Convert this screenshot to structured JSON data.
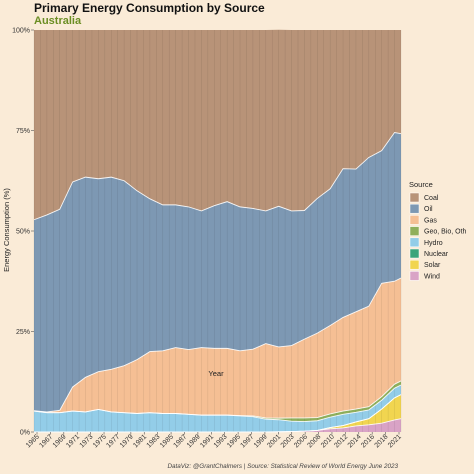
{
  "chart_data": {
    "type": "area",
    "title": "Primary Energy Consumption by Source",
    "subtitle": "Australia",
    "xlabel": "Year",
    "ylabel": "Energy Consumption (%)",
    "caption": "DataViz: @GrantChalmers | Source: Statistical Review of World Energy June 2023",
    "legend_title": "Source",
    "legend_position": "right",
    "xlim": [
      1965,
      2022
    ],
    "ylim": [
      0,
      100
    ],
    "y_ticks": [
      0,
      25,
      50,
      75,
      100
    ],
    "y_tick_labels": [
      "0%",
      "25%",
      "50%",
      "75%",
      "100%"
    ],
    "x_tick_labels": [
      "1965",
      "1967",
      "1969",
      "1971",
      "1973",
      "1975",
      "1977",
      "1979",
      "1981",
      "1983",
      "1985",
      "1987",
      "1989",
      "1991",
      "1993",
      "1995",
      "1997",
      "1999",
      "2001",
      "2003",
      "2006",
      "2008",
      "2010",
      "2012",
      "2014",
      "2016",
      "2018",
      "2021"
    ],
    "stack_order": [
      "Wind",
      "Solar",
      "Nuclear",
      "Hydro",
      "Geo, Bio, Oth",
      "Gas",
      "Oil",
      "Coal"
    ],
    "legend_order": [
      "Coal",
      "Oil",
      "Gas",
      "Geo, Bio, Oth",
      "Hydro",
      "Nuclear",
      "Solar",
      "Wind"
    ],
    "colors": {
      "Coal": "#b89378",
      "Oil": "#7d98b3",
      "Gas": "#f5bf94",
      "Geo, Bio, Oth": "#8faf5c",
      "Hydro": "#93cde8",
      "Nuclear": "#3aa57a",
      "Solar": "#f1d550",
      "Wind": "#d9a3c6"
    },
    "x": [
      1965,
      1967,
      1969,
      1971,
      1973,
      1975,
      1977,
      1979,
      1981,
      1983,
      1985,
      1987,
      1989,
      1991,
      1993,
      1995,
      1997,
      1999,
      2001,
      2003,
      2005,
      2007,
      2009,
      2011,
      2013,
      2015,
      2017,
      2019,
      2021,
      2022
    ],
    "series": [
      {
        "name": "Wind",
        "values": [
          0,
          0,
          0,
          0,
          0,
          0,
          0,
          0,
          0,
          0,
          0,
          0,
          0,
          0,
          0,
          0,
          0,
          0,
          0,
          0.05,
          0.1,
          0.2,
          0.4,
          0.8,
          1.0,
          1.5,
          1.8,
          2.2,
          3.0,
          3.3
        ]
      },
      {
        "name": "Solar",
        "values": [
          0,
          0,
          0,
          0,
          0,
          0,
          0,
          0,
          0,
          0,
          0,
          0,
          0,
          0,
          0,
          0,
          0,
          0,
          0,
          0,
          0,
          0,
          0,
          0.3,
          0.6,
          1.0,
          1.5,
          3.5,
          5.5,
          6.0
        ]
      },
      {
        "name": "Nuclear",
        "values": [
          0,
          0,
          0,
          0,
          0,
          0,
          0,
          0,
          0,
          0,
          0,
          0,
          0,
          0,
          0,
          0,
          0,
          0,
          0,
          0,
          0,
          0,
          0,
          0,
          0,
          0,
          0,
          0,
          0,
          0
        ]
      },
      {
        "name": "Hydro",
        "values": [
          5.2,
          4.8,
          4.8,
          5.2,
          5.0,
          5.6,
          5.0,
          4.8,
          4.6,
          4.8,
          4.6,
          4.6,
          4.4,
          4.2,
          4.2,
          4.2,
          4.0,
          3.8,
          3.2,
          3.0,
          2.6,
          2.4,
          2.4,
          2.6,
          2.8,
          2.4,
          2.2,
          2.2,
          2.4,
          2.4
        ]
      },
      {
        "name": "Geo, Bio, Oth",
        "values": [
          0,
          0,
          0,
          0,
          0,
          0,
          0,
          0,
          0,
          0,
          0,
          0,
          0,
          0,
          0,
          0,
          0.1,
          0.2,
          0.3,
          0.4,
          0.8,
          0.9,
          0.8,
          0.8,
          0.8,
          0.8,
          0.8,
          0.9,
          1.0,
          1.0
        ]
      },
      {
        "name": "Gas",
        "values": [
          0.1,
          0.2,
          0.6,
          6.0,
          8.6,
          9.4,
          10.6,
          11.7,
          13.4,
          15.2,
          15.6,
          16.4,
          16.1,
          16.8,
          16.6,
          16.6,
          16.1,
          16.6,
          18.5,
          17.7,
          18.0,
          19.6,
          21.0,
          22.0,
          23.3,
          24.2,
          25.0,
          28.2,
          25.6,
          25.6
        ]
      },
      {
        "name": "Oil",
        "values": [
          47.5,
          49.0,
          50.0,
          51.0,
          49.8,
          48.0,
          47.8,
          46.0,
          42.0,
          38.0,
          36.3,
          35.5,
          35.5,
          34.0,
          35.5,
          36.5,
          35.8,
          35.0,
          33.0,
          35.0,
          33.5,
          32.0,
          33.5,
          34.0,
          37.0,
          35.5,
          37.0,
          33.0,
          37.0,
          35.9
        ]
      },
      {
        "name": "Coal",
        "values": [
          47.2,
          46.0,
          44.6,
          37.8,
          36.6,
          37.0,
          36.6,
          37.5,
          40.0,
          42.0,
          43.5,
          43.5,
          44.0,
          45.0,
          43.7,
          42.7,
          44.0,
          44.4,
          45.0,
          43.9,
          45.0,
          44.9,
          41.9,
          39.5,
          34.5,
          34.6,
          31.7,
          30.0,
          25.5,
          25.8
        ]
      }
    ]
  }
}
